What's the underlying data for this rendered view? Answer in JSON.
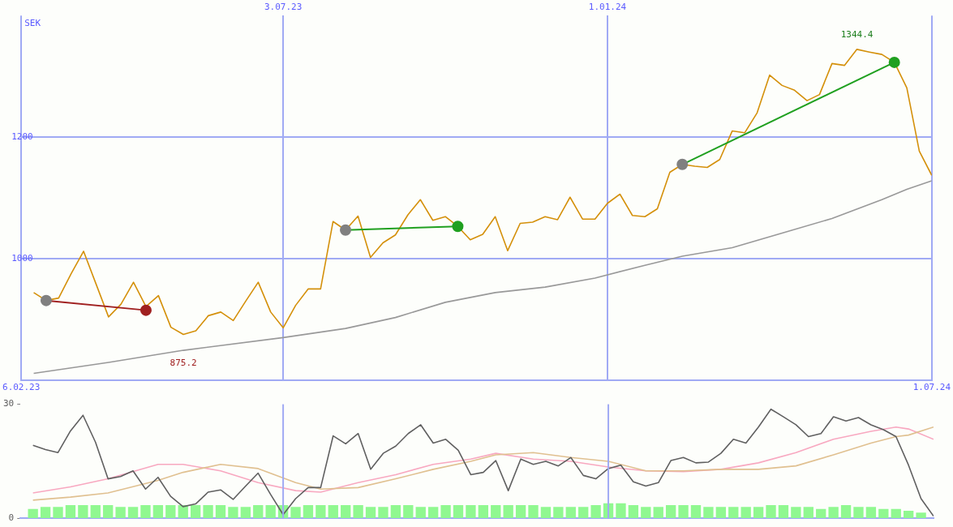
{
  "chart_data": [
    {
      "type": "line",
      "ylabel": "SEK",
      "xlim": [
        "2023-02-06",
        "2024-07-01"
      ],
      "xticks": [
        {
          "value": "2023-02-06",
          "label": "6.02.23"
        },
        {
          "value": "2024-07-01",
          "label": "1.07.24"
        }
      ],
      "x2lim": [
        "2023-02-06",
        "2024-07-01"
      ],
      "x2ticks": [
        {
          "value": "2023-07-03",
          "label": "3.07.23"
        },
        {
          "value": "2024-01-01",
          "label": "1.01.24"
        }
      ],
      "ylim": [
        800,
        1400
      ],
      "yticks": [
        1000,
        1200
      ],
      "grid": true,
      "legend": false,
      "marker": "none",
      "line_style": "solid",
      "x": [
        "2023-02-13",
        "2023-02-20",
        "2023-02-27",
        "2023-03-06",
        "2023-03-13",
        "2023-03-20",
        "2023-03-27",
        "2023-04-03",
        "2023-04-10",
        "2023-04-17",
        "2023-04-24",
        "2023-05-01",
        "2023-05-08",
        "2023-05-15",
        "2023-05-22",
        "2023-05-29",
        "2023-06-05",
        "2023-06-12",
        "2023-06-19",
        "2023-06-26",
        "2023-07-03",
        "2023-07-10",
        "2023-07-17",
        "2023-07-24",
        "2023-07-31",
        "2023-08-07",
        "2023-08-14",
        "2023-08-21",
        "2023-08-28",
        "2023-09-04",
        "2023-09-11",
        "2023-09-18",
        "2023-09-25",
        "2023-10-02",
        "2023-10-09",
        "2023-10-16",
        "2023-10-23",
        "2023-10-30",
        "2023-11-06",
        "2023-11-13",
        "2023-11-20",
        "2023-11-27",
        "2023-12-04",
        "2023-12-11",
        "2023-12-18",
        "2023-12-25",
        "2024-01-01",
        "2024-01-08",
        "2024-01-15",
        "2024-01-22",
        "2024-01-29",
        "2024-02-05",
        "2024-02-12",
        "2024-02-19",
        "2024-02-26",
        "2024-03-04",
        "2024-03-11",
        "2024-03-18",
        "2024-03-25",
        "2024-04-01",
        "2024-04-08",
        "2024-04-15",
        "2024-04-22",
        "2024-04-29",
        "2024-05-06",
        "2024-05-13",
        "2024-05-20",
        "2024-05-27",
        "2024-06-03",
        "2024-06-10",
        "2024-06-17",
        "2024-06-24",
        "2024-07-01"
      ],
      "annotations": [
        {
          "text": "1344.4",
          "x": "2024-05-20",
          "y": 1344.4
        },
        {
          "text": "875.2",
          "x": "2023-05-08",
          "y": 875.2
        }
      ],
      "series": [
        {
          "color": "#999999",
          "x": [
            "2023-02-13",
            "2023-03-27",
            "2023-05-08",
            "2023-07-03",
            "2023-08-07",
            "2023-09-04",
            "2023-10-02",
            "2023-10-30",
            "2023-11-27",
            "2023-12-25",
            "2024-01-22",
            "2024-02-12",
            "2024-03-11",
            "2024-04-08",
            "2024-05-06",
            "2024-06-03",
            "2024-06-17",
            "2024-07-01"
          ],
          "values": [
            811,
            829,
            849,
            870,
            885,
            903,
            928,
            944,
            953,
            968,
            989,
            1004,
            1018,
            1042,
            1066,
            1097,
            1114,
            1128
          ]
        },
        {
          "color": "#d4900a",
          "values": [
            944,
            931,
            935,
            975,
            1012,
            958,
            904,
            925,
            961,
            921,
            939,
            887,
            875.2,
            881,
            906,
            912,
            898,
            930,
            961,
            912,
            886,
            923,
            950,
            950,
            1061,
            1047,
            1070,
            1002,
            1026,
            1039,
            1072,
            1097,
            1063,
            1069,
            1053,
            1031,
            1040,
            1069,
            1013,
            1058,
            1060,
            1069,
            1064,
            1101,
            1065,
            1065,
            1091,
            1106,
            1071,
            1069,
            1082,
            1142,
            1155,
            1152,
            1150,
            1163,
            1210,
            1207,
            1240,
            1302,
            1285,
            1277,
            1260,
            1270,
            1321,
            1318,
            1344.4,
            1340,
            1336,
            1323,
            1281,
            1177,
            1137
          ]
        },
        {
          "color": "#a02020",
          "marker": "circle",
          "colors": [
            "#808080",
            "#a02020"
          ],
          "x": [
            "2023-02-20",
            "2023-04-17"
          ],
          "values": [
            931,
            915
          ]
        },
        {
          "color": "#20a020",
          "marker": "circle",
          "colors": [
            "#808080",
            "#20a020"
          ],
          "x": [
            "2023-08-07",
            "2023-10-09"
          ],
          "values": [
            1047,
            1053
          ]
        },
        {
          "color": "#20a020",
          "marker": "circle",
          "colors": [
            "#808080",
            "#20a020"
          ],
          "x": [
            "2024-02-12",
            "2024-06-10"
          ],
          "values": [
            1155,
            1323
          ]
        }
      ]
    },
    {
      "type": "line",
      "xlim": [
        "2023-02-06",
        "2024-07-01"
      ],
      "ylim": [
        0,
        30
      ],
      "yticks": [
        0,
        30
      ],
      "ref_lines": [
        {
          "axis": "x",
          "value": "2023-07-03",
          "color": "#a0aaf4"
        },
        {
          "axis": "x",
          "value": "2024-01-01",
          "color": "#a0aaf4"
        }
      ],
      "tick_labels": "y",
      "legend": false,
      "marker": "none",
      "x": [
        "2023-02-13",
        "2023-02-20",
        "2023-02-27",
        "2023-03-06",
        "2023-03-13",
        "2023-03-20",
        "2023-03-27",
        "2023-04-03",
        "2023-04-10",
        "2023-04-17",
        "2023-04-24",
        "2023-05-01",
        "2023-05-08",
        "2023-05-15",
        "2023-05-22",
        "2023-05-29",
        "2023-06-05",
        "2023-06-12",
        "2023-06-19",
        "2023-06-26",
        "2023-07-03",
        "2023-07-10",
        "2023-07-17",
        "2023-07-24",
        "2023-07-31",
        "2023-08-07",
        "2023-08-14",
        "2023-08-21",
        "2023-08-28",
        "2023-09-04",
        "2023-09-11",
        "2023-09-18",
        "2023-09-25",
        "2023-10-02",
        "2023-10-09",
        "2023-10-16",
        "2023-10-23",
        "2023-10-30",
        "2023-11-06",
        "2023-11-13",
        "2023-11-20",
        "2023-11-27",
        "2023-12-04",
        "2023-12-11",
        "2023-12-18",
        "2023-12-25",
        "2024-01-01",
        "2024-01-08",
        "2024-01-15",
        "2024-01-22",
        "2024-01-29",
        "2024-02-05",
        "2024-02-12",
        "2024-02-19",
        "2024-02-26",
        "2024-03-04",
        "2024-03-11",
        "2024-03-18",
        "2024-03-25",
        "2024-04-01",
        "2024-04-08",
        "2024-04-15",
        "2024-04-22",
        "2024-04-29",
        "2024-05-06",
        "2024-05-13",
        "2024-05-20",
        "2024-05-27",
        "2024-06-03",
        "2024-06-10",
        "2024-06-17",
        "2024-06-24",
        "2024-07-01"
      ],
      "series": [
        {
          "type": "bar",
          "color": "#90f890",
          "values": [
            2.5,
            3,
            3,
            3.5,
            3.5,
            3.5,
            3.5,
            3,
            3,
            3.5,
            3.5,
            3.5,
            3.5,
            3.5,
            3.5,
            3.5,
            3,
            3,
            3.5,
            3.5,
            3.5,
            3,
            3.5,
            3.5,
            3.5,
            3.5,
            3.5,
            3,
            3,
            3.5,
            3.5,
            3,
            3,
            3.5,
            3.5,
            3.5,
            3.5,
            3.5,
            3.5,
            3.5,
            3.5,
            3,
            3,
            3,
            3,
            3.5,
            4,
            4,
            3.5,
            3,
            3,
            3.5,
            3.5,
            3.5,
            3,
            3,
            3,
            3,
            3,
            3.5,
            3.5,
            3,
            3,
            2.5,
            3,
            3.5,
            3,
            3,
            2.5,
            2.5,
            2,
            1.5,
            null
          ]
        },
        {
          "color": "#f8a8c0",
          "x": [
            "2023-02-13",
            "2023-03-06",
            "2023-03-27",
            "2023-04-24",
            "2023-05-08",
            "2023-05-29",
            "2023-06-19",
            "2023-07-10",
            "2023-07-24",
            "2023-08-14",
            "2023-09-04",
            "2023-09-25",
            "2023-10-16",
            "2023-10-30",
            "2023-11-20",
            "2023-12-11",
            "2024-01-01",
            "2024-01-22",
            "2024-02-12",
            "2024-03-04",
            "2024-03-25",
            "2024-04-15",
            "2024-05-06",
            "2024-05-27",
            "2024-06-10",
            "2024-06-17",
            "2024-07-01"
          ],
          "values": [
            6.7,
            8.3,
            10.4,
            14.2,
            14.2,
            12.5,
            9.4,
            7.3,
            6.9,
            9.4,
            11.5,
            14.2,
            15.6,
            17.1,
            15.6,
            15,
            13.5,
            12.5,
            12.3,
            12.9,
            14.6,
            17.3,
            20.8,
            22.9,
            24,
            23.5,
            20.8
          ]
        },
        {
          "color": "#e0c090",
          "x": [
            "2023-02-13",
            "2023-03-06",
            "2023-03-27",
            "2023-04-24",
            "2023-05-08",
            "2023-05-29",
            "2023-06-19",
            "2023-07-10",
            "2023-07-24",
            "2023-08-14",
            "2023-09-04",
            "2023-09-25",
            "2023-10-16",
            "2023-10-30",
            "2023-11-20",
            "2023-12-11",
            "2024-01-01",
            "2024-01-22",
            "2024-02-12",
            "2024-03-04",
            "2024-03-25",
            "2024-04-15",
            "2024-05-06",
            "2024-05-27",
            "2024-06-10",
            "2024-06-17",
            "2024-07-01"
          ],
          "values": [
            4.8,
            5.6,
            6.7,
            10,
            12.1,
            14.2,
            13.1,
            9.4,
            7.7,
            8.1,
            10.4,
            12.9,
            15,
            16.7,
            17.3,
            16,
            15,
            12.5,
            12.5,
            12.9,
            12.9,
            13.8,
            16.7,
            19.8,
            21.5,
            21.9,
            24
          ]
        },
        {
          "color": "#606060",
          "values": [
            19.2,
            18.1,
            17.3,
            23,
            27.1,
            20,
            10.4,
            11,
            12.5,
            7.7,
            10.8,
            5.8,
            3.1,
            3.8,
            6.9,
            7.5,
            5,
            8.5,
            11.9,
            6.3,
            1,
            5.2,
            8.1,
            8.1,
            21.7,
            19.6,
            22.3,
            12.9,
            17.1,
            19,
            22.3,
            24.6,
            19.8,
            20.8,
            17.9,
            11.5,
            12.1,
            15.2,
            7.3,
            15.6,
            14.2,
            15,
            13.8,
            16,
            11.3,
            10.4,
            13.1,
            14,
            9.6,
            8.5,
            9.4,
            15.2,
            16,
            14.6,
            14.8,
            17.1,
            20.8,
            19.8,
            24,
            28.7,
            26.7,
            24.6,
            21.5,
            22.3,
            26.7,
            25.6,
            26.5,
            24.6,
            23.3,
            21.5,
            14,
            5.2,
            0.6
          ]
        }
      ]
    }
  ]
}
